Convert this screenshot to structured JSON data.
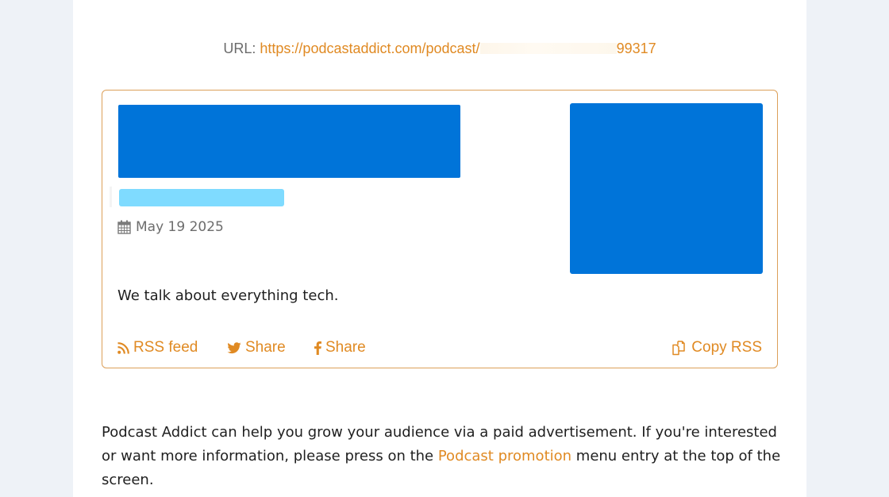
{
  "url": {
    "label": "URL:",
    "link_prefix": "https://podcastaddict.com/podcast/",
    "link_suffix": "99317"
  },
  "podcast_card": {
    "date": "May 19 2025",
    "description": "We talk about everything tech.",
    "actions": {
      "rss": "RSS feed",
      "twitter": "Share",
      "facebook": "Share",
      "copy": "Copy RSS"
    },
    "icons": {
      "date": "calendar-icon",
      "rss": "rss-icon",
      "twitter": "twitter-icon",
      "facebook": "facebook-icon",
      "copy": "copy-icon"
    }
  },
  "footer": {
    "text_before": "Podcast Addict can help you grow your audience via a paid advertisement. If you're interested or want more information, please press on the ",
    "link": "Podcast promotion",
    "text_after": " menu entry at the top of the screen."
  },
  "colors": {
    "accent": "#e08a23",
    "placeholder_blue": "#0074d9",
    "placeholder_light_blue": "#7fdbff",
    "card_border": "#dca05a",
    "background": "#eef2f7"
  }
}
